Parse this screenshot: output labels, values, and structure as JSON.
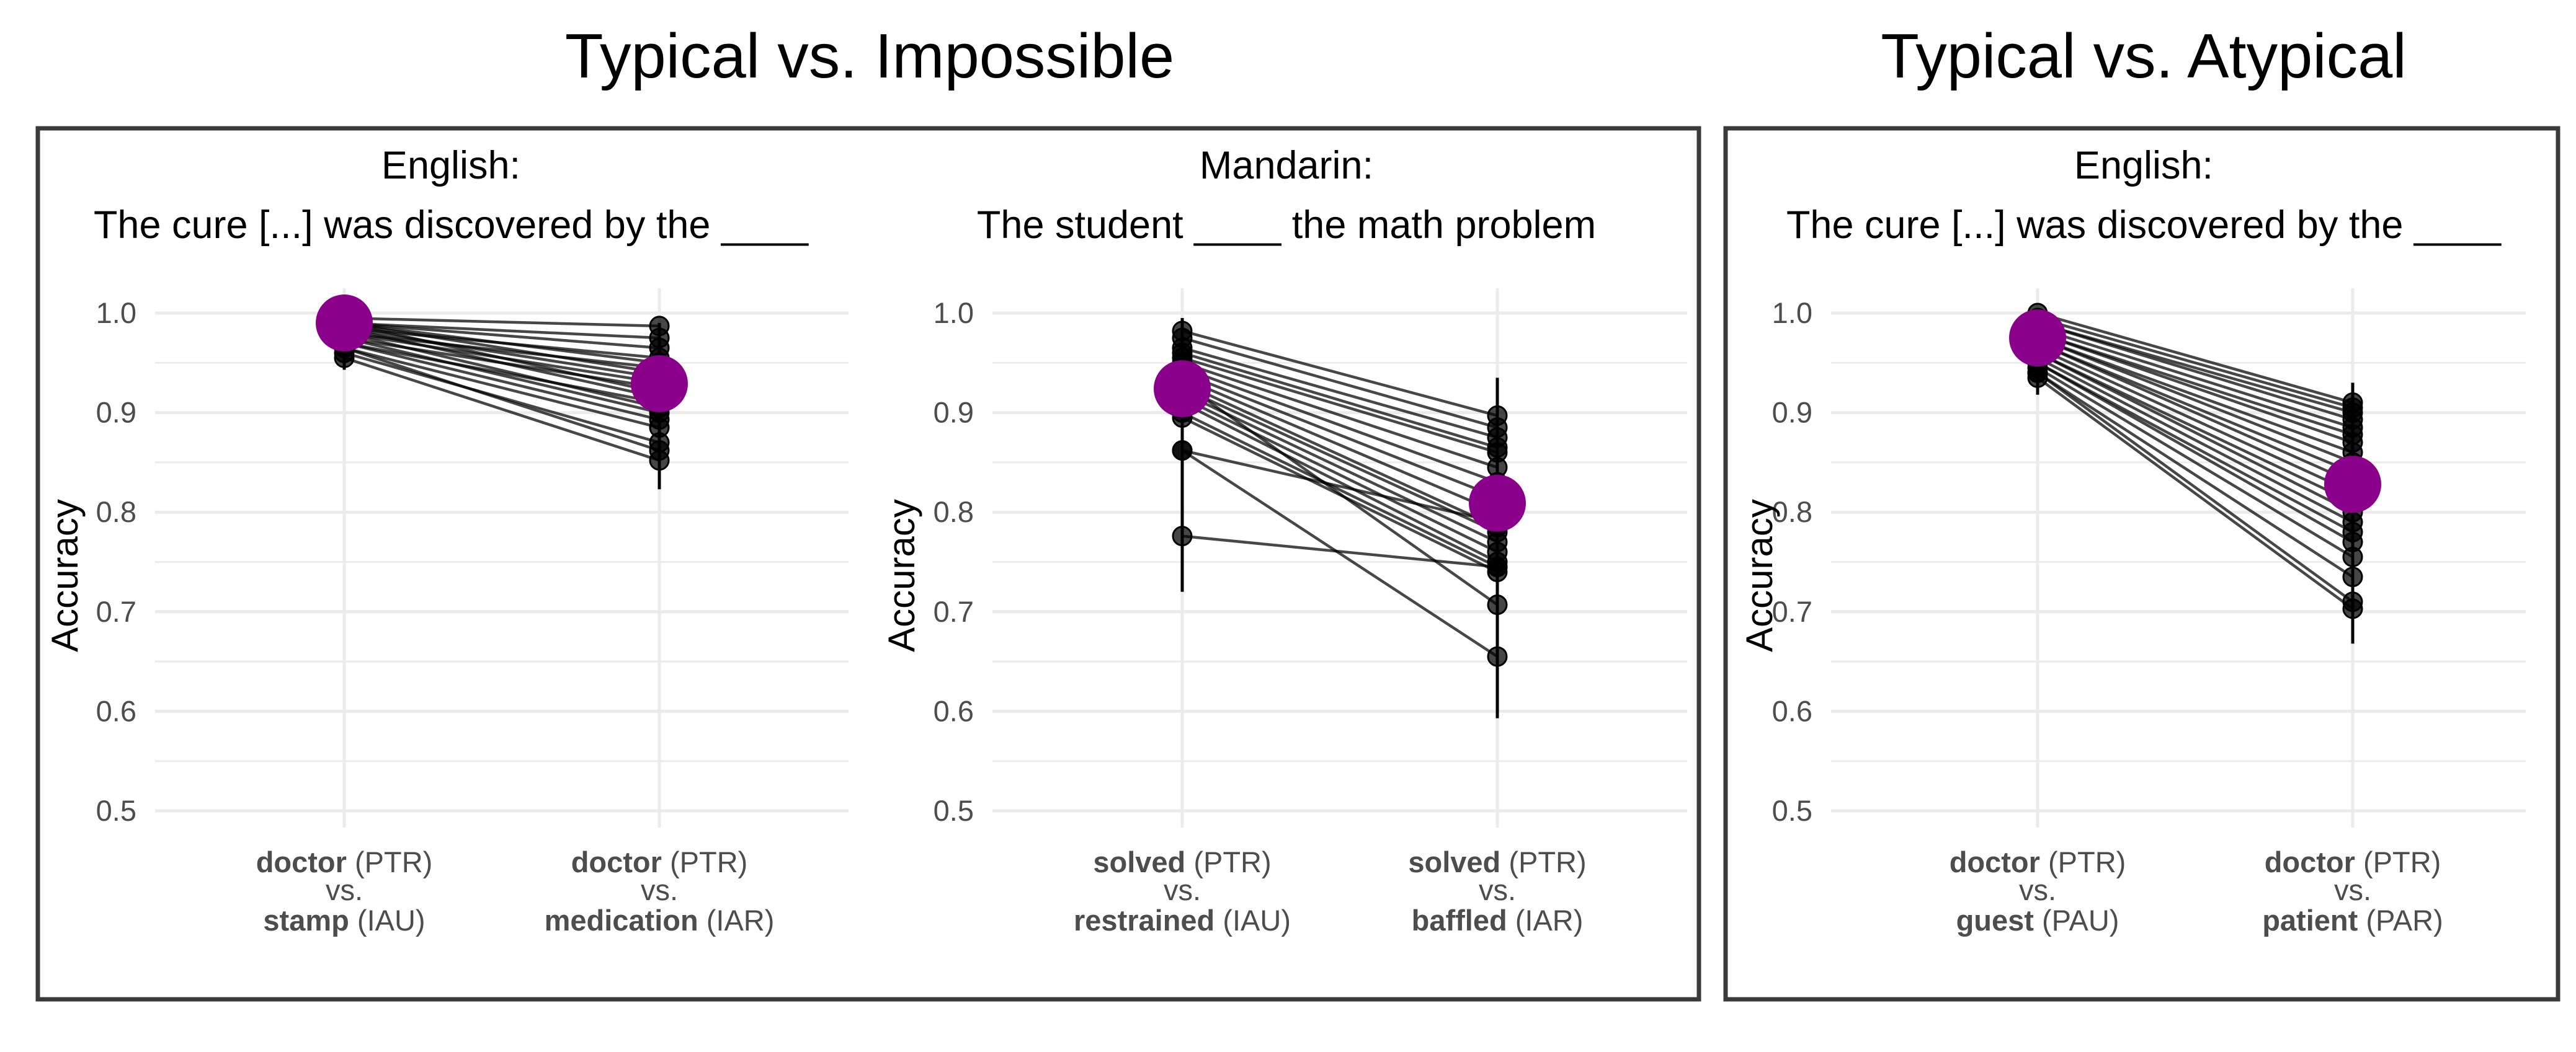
{
  "group_titles": {
    "left": "Typical vs. Impossible",
    "right": "Typical vs. Atypical"
  },
  "colors": {
    "mean": "#8B008B",
    "line": "#000000",
    "grid": "#ebebeb",
    "border": "#3a3a3a"
  },
  "chart_data": [
    {
      "type": "line",
      "title_line1": "English:",
      "title_line2": "The cure [...] was discovered by the ____",
      "ylabel": "Accuracy",
      "ylim": [
        0.5,
        1.0
      ],
      "yticks": [
        "0.5",
        "0.6",
        "0.7",
        "0.8",
        "0.9",
        "1.0"
      ],
      "x_labels": [
        {
          "top_word": "doctor",
          "top_tag": " (PTR)",
          "vs": "vs.",
          "bottom_word": "stamp",
          "bottom_tag": " (IAU)"
        },
        {
          "top_word": "doctor",
          "top_tag": " (PTR)",
          "vs": "vs.",
          "bottom_word": "medication",
          "bottom_tag": " (IAR)"
        }
      ],
      "series": [
        {
          "values": [
            0.995,
            0.987
          ]
        },
        {
          "values": [
            0.99,
            0.975
          ]
        },
        {
          "values": [
            0.99,
            0.965
          ]
        },
        {
          "values": [
            0.985,
            0.955
          ]
        },
        {
          "values": [
            0.99,
            0.95
          ]
        },
        {
          "values": [
            0.98,
            0.945
          ]
        },
        {
          "values": [
            0.99,
            0.94
          ]
        },
        {
          "values": [
            0.985,
            0.935
          ]
        },
        {
          "values": [
            0.98,
            0.93
          ]
        },
        {
          "values": [
            0.975,
            0.925
          ]
        },
        {
          "values": [
            0.99,
            0.92
          ]
        },
        {
          "values": [
            0.985,
            0.915
          ]
        },
        {
          "values": [
            0.97,
            0.91
          ]
        },
        {
          "values": [
            0.98,
            0.905
          ]
        },
        {
          "values": [
            0.975,
            0.9
          ]
        },
        {
          "values": [
            0.97,
            0.893
          ]
        },
        {
          "values": [
            0.965,
            0.885
          ]
        },
        {
          "values": [
            0.96,
            0.87
          ]
        },
        {
          "values": [
            0.965,
            0.862
          ]
        },
        {
          "values": [
            0.955,
            0.852
          ]
        }
      ],
      "mean": [
        0.99,
        0.929
      ],
      "errorbars": [
        [
          0.943,
          0.998
        ],
        [
          0.823,
          0.99
        ]
      ]
    },
    {
      "type": "line",
      "title_line1": "Mandarin:",
      "title_line2": "The student ____ the math problem",
      "ylabel": "Accuracy",
      "ylim": [
        0.5,
        1.0
      ],
      "yticks": [
        "0.5",
        "0.6",
        "0.7",
        "0.8",
        "0.9",
        "1.0"
      ],
      "x_labels": [
        {
          "top_word": "solved",
          "top_tag": " (PTR)",
          "vs": "vs.",
          "bottom_word": "restrained",
          "bottom_tag": " (IAU)"
        },
        {
          "top_word": "solved",
          "top_tag": " (PTR)",
          "vs": "vs.",
          "bottom_word": "baffled",
          "bottom_tag": " (IAR)"
        }
      ],
      "series": [
        {
          "values": [
            0.982,
            0.897
          ]
        },
        {
          "values": [
            0.975,
            0.885
          ]
        },
        {
          "values": [
            0.965,
            0.875
          ]
        },
        {
          "values": [
            0.96,
            0.865
          ]
        },
        {
          "values": [
            0.955,
            0.86
          ]
        },
        {
          "values": [
            0.95,
            0.845
          ]
        },
        {
          "values": [
            0.945,
            0.83
          ]
        },
        {
          "values": [
            0.94,
            0.815
          ]
        },
        {
          "values": [
            0.935,
            0.8
          ]
        },
        {
          "values": [
            0.93,
            0.785
          ]
        },
        {
          "values": [
            0.925,
            0.78
          ]
        },
        {
          "values": [
            0.92,
            0.77
          ]
        },
        {
          "values": [
            0.915,
            0.76
          ]
        },
        {
          "values": [
            0.91,
            0.75
          ]
        },
        {
          "values": [
            0.9,
            0.745
          ]
        },
        {
          "values": [
            0.895,
            0.74
          ]
        },
        {
          "values": [
            0.93,
            0.707
          ]
        },
        {
          "values": [
            0.862,
            0.655
          ]
        },
        {
          "values": [
            0.862,
            0.79
          ]
        },
        {
          "values": [
            0.776,
            0.745
          ]
        }
      ],
      "mean": [
        0.924,
        0.809
      ],
      "errorbars": [
        [
          0.72,
          0.995
        ],
        [
          0.593,
          0.935
        ]
      ]
    },
    {
      "type": "line",
      "title_line1": "English:",
      "title_line2": "The cure [...] was discovered by the ____",
      "ylabel": "Accuracy",
      "ylim": [
        0.5,
        1.0
      ],
      "yticks": [
        "0.5",
        "0.6",
        "0.7",
        "0.8",
        "0.9",
        "1.0"
      ],
      "x_labels": [
        {
          "top_word": "doctor",
          "top_tag": " (PTR)",
          "vs": "vs.",
          "bottom_word": "guest",
          "bottom_tag": " (PAU)"
        },
        {
          "top_word": "doctor",
          "top_tag": " (PTR)",
          "vs": "vs.",
          "bottom_word": "patient",
          "bottom_tag": " (PAR)"
        }
      ],
      "series": [
        {
          "values": [
            1.0,
            0.91
          ]
        },
        {
          "values": [
            0.995,
            0.905
          ]
        },
        {
          "values": [
            0.99,
            0.9
          ]
        },
        {
          "values": [
            0.99,
            0.893
          ]
        },
        {
          "values": [
            0.985,
            0.885
          ]
        },
        {
          "values": [
            0.98,
            0.878
          ]
        },
        {
          "values": [
            0.98,
            0.87
          ]
        },
        {
          "values": [
            0.975,
            0.86
          ]
        },
        {
          "values": [
            0.975,
            0.85
          ]
        },
        {
          "values": [
            0.97,
            0.84
          ]
        },
        {
          "values": [
            0.97,
            0.83
          ]
        },
        {
          "values": [
            0.965,
            0.82
          ]
        },
        {
          "values": [
            0.96,
            0.81
          ]
        },
        {
          "values": [
            0.96,
            0.8
          ]
        },
        {
          "values": [
            0.955,
            0.79
          ]
        },
        {
          "values": [
            0.95,
            0.78
          ]
        },
        {
          "values": [
            0.95,
            0.77
          ]
        },
        {
          "values": [
            0.945,
            0.755
          ]
        },
        {
          "values": [
            0.94,
            0.735
          ]
        },
        {
          "values": [
            0.94,
            0.71
          ]
        },
        {
          "values": [
            0.935,
            0.703
          ]
        }
      ],
      "mean": [
        0.975,
        0.828
      ],
      "errorbars": [
        [
          0.918,
          1.0
        ],
        [
          0.668,
          0.93
        ]
      ]
    }
  ]
}
